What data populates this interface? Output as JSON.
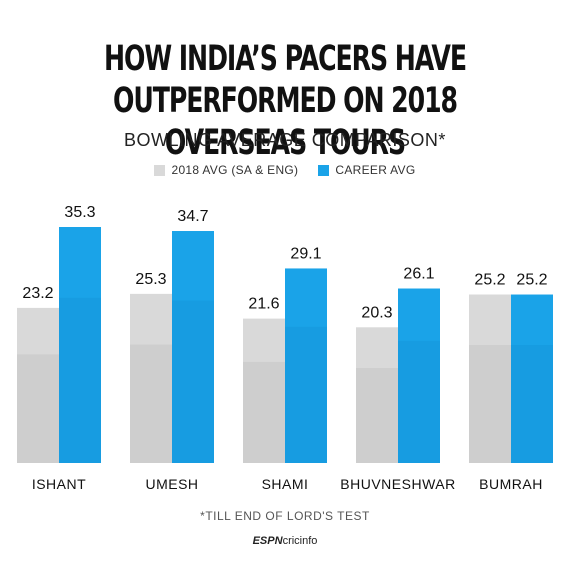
{
  "title_line1": "HOW INDIA’S PACERS HAVE",
  "title_line2": "OUTPERFORMED ON 2018 OVERSEAS TOURS",
  "subtitle": "BOWLING AVERAGE COMPARISON*",
  "legend": {
    "items": [
      {
        "label": "2018 AVG (SA & ENG)",
        "color": "#d9d9d9"
      },
      {
        "label": "CAREER AVG",
        "color": "#1aa3e8"
      }
    ]
  },
  "footnote": "*TILL END OF LORD'S TEST",
  "brand": {
    "part1": "ESPN",
    "part2": "cricinfo"
  },
  "chart_data": {
    "type": "bar",
    "categories": [
      "ISHANT",
      "UMESH",
      "SHAMI",
      "BHUVNESHWAR",
      "BUMRAH"
    ],
    "series": [
      {
        "name": "2018 AVG (SA & ENG)",
        "color": "#d9d9d9",
        "values": [
          23.2,
          25.3,
          21.6,
          20.3,
          25.2
        ]
      },
      {
        "name": "CAREER AVG",
        "color": "#1aa3e8",
        "values": [
          35.3,
          34.7,
          29.1,
          26.1,
          25.2
        ]
      }
    ],
    "value_labels": [
      [
        "23.2",
        "25.3",
        "21.6",
        "20.3",
        "25.2"
      ],
      [
        "35.3",
        "34.7",
        "29.1",
        "26.1",
        "25.2"
      ]
    ],
    "ylim": [
      0,
      35.3
    ],
    "grid": false,
    "legend_position": "top-center"
  }
}
